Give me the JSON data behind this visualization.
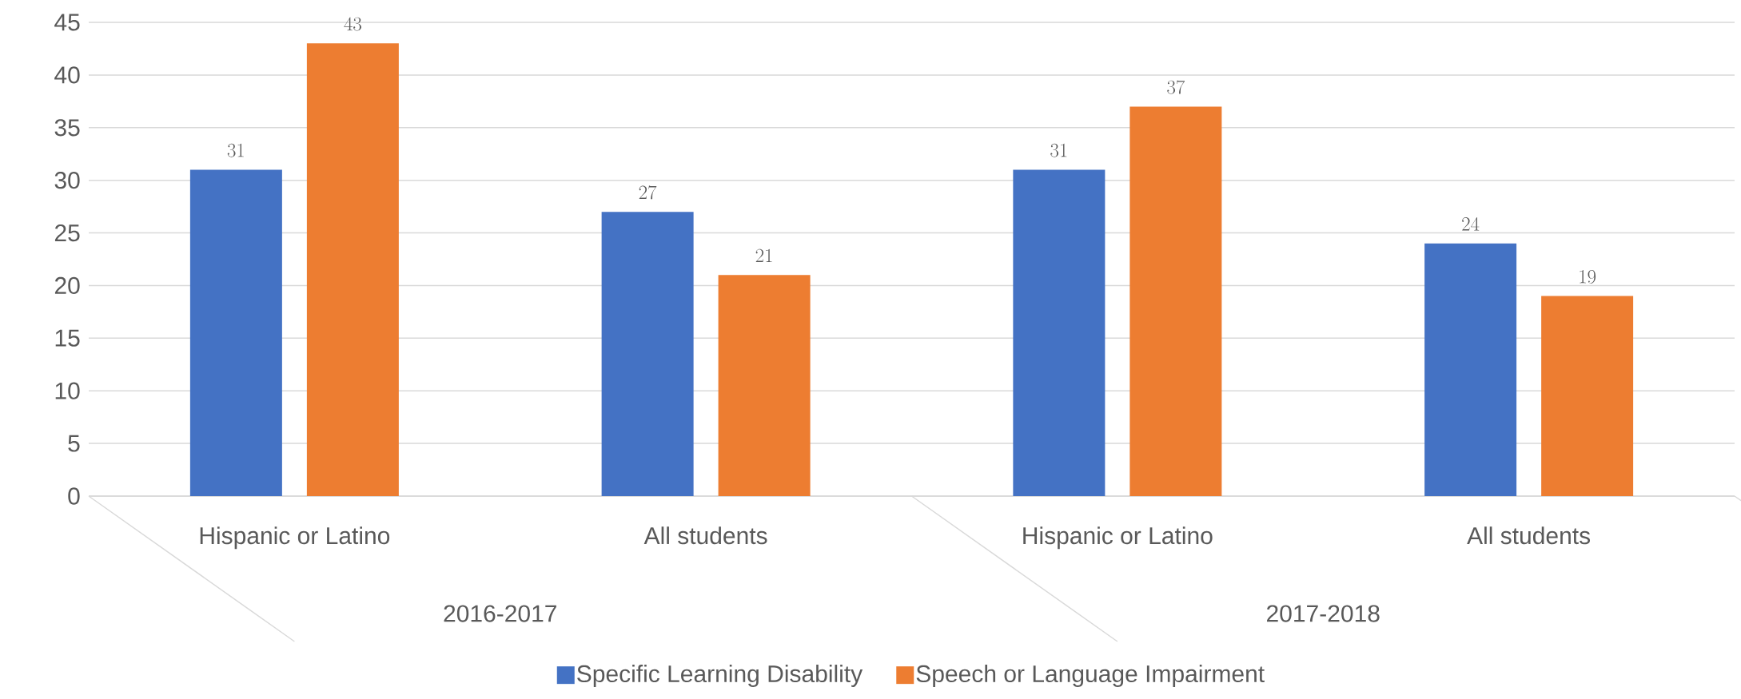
{
  "chart_data": {
    "type": "bar",
    "categories": [
      "Hispanic or Latino",
      "All students",
      "Hispanic or Latino",
      "All students"
    ],
    "series": [
      {
        "name": "Specific Learning Disability",
        "color": "#4472c4",
        "values": [
          31,
          27,
          31,
          24
        ]
      },
      {
        "name": "Speech or Language Impairment",
        "color": "#ed7d31",
        "values": [
          43,
          21,
          37,
          19
        ]
      }
    ],
    "annotations": [
      "2016-2017",
      "2017-2018"
    ],
    "ylim": [
      0,
      45
    ],
    "yticks": [
      0,
      5,
      10,
      15,
      20,
      25,
      30,
      35,
      40,
      45
    ],
    "grid": "y",
    "legend": "bottom",
    "data_labels": true
  }
}
